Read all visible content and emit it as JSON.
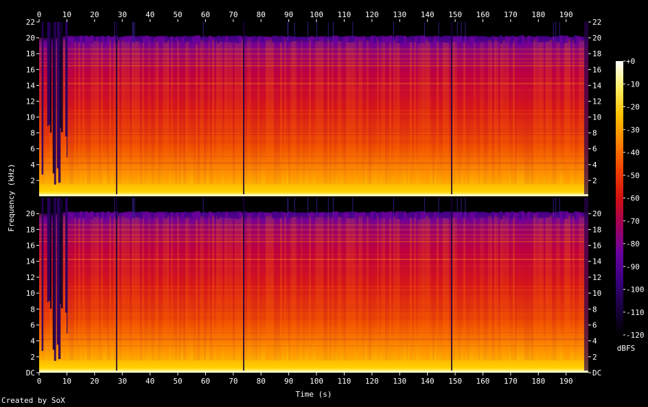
{
  "chart_data": {
    "type": "heatmap",
    "title": "",
    "xlabel": "Time (s)",
    "ylabel": "Frequency (kHz)",
    "colorbar_label": "dBFS",
    "credit": "Created by SoX",
    "x_ticks": [
      "0",
      "10",
      "20",
      "30",
      "40",
      "50",
      "60",
      "70",
      "80",
      "90",
      "100",
      "110",
      "120",
      "130",
      "140",
      "150",
      "160",
      "170",
      "180",
      "190"
    ],
    "y_ticks_top_channel": [
      "2",
      "4",
      "6",
      "8",
      "10",
      "12",
      "14",
      "16",
      "18",
      "20",
      "22"
    ],
    "y_ticks_bottom_channel": [
      "DC",
      "2",
      "4",
      "6",
      "8",
      "10",
      "12",
      "14",
      "16",
      "18",
      "20"
    ],
    "colorbar_ticks": [
      "+0",
      "-10",
      "-20",
      "-30",
      "-40",
      "-50",
      "-60",
      "-70",
      "-80",
      "-90",
      "-100",
      "-110",
      "-120"
    ],
    "xlim": [
      0,
      198
    ],
    "ylim": [
      0,
      22
    ],
    "zlim": [
      -120,
      0
    ],
    "channels": 2,
    "colormap": [
      "#000000",
      "#1a0040",
      "#3a0080",
      "#6a00a0",
      "#a0005a",
      "#d01010",
      "#f04000",
      "#ff8000",
      "#ffc000",
      "#ffee60",
      "#ffffff"
    ],
    "background_color": "#000000"
  }
}
